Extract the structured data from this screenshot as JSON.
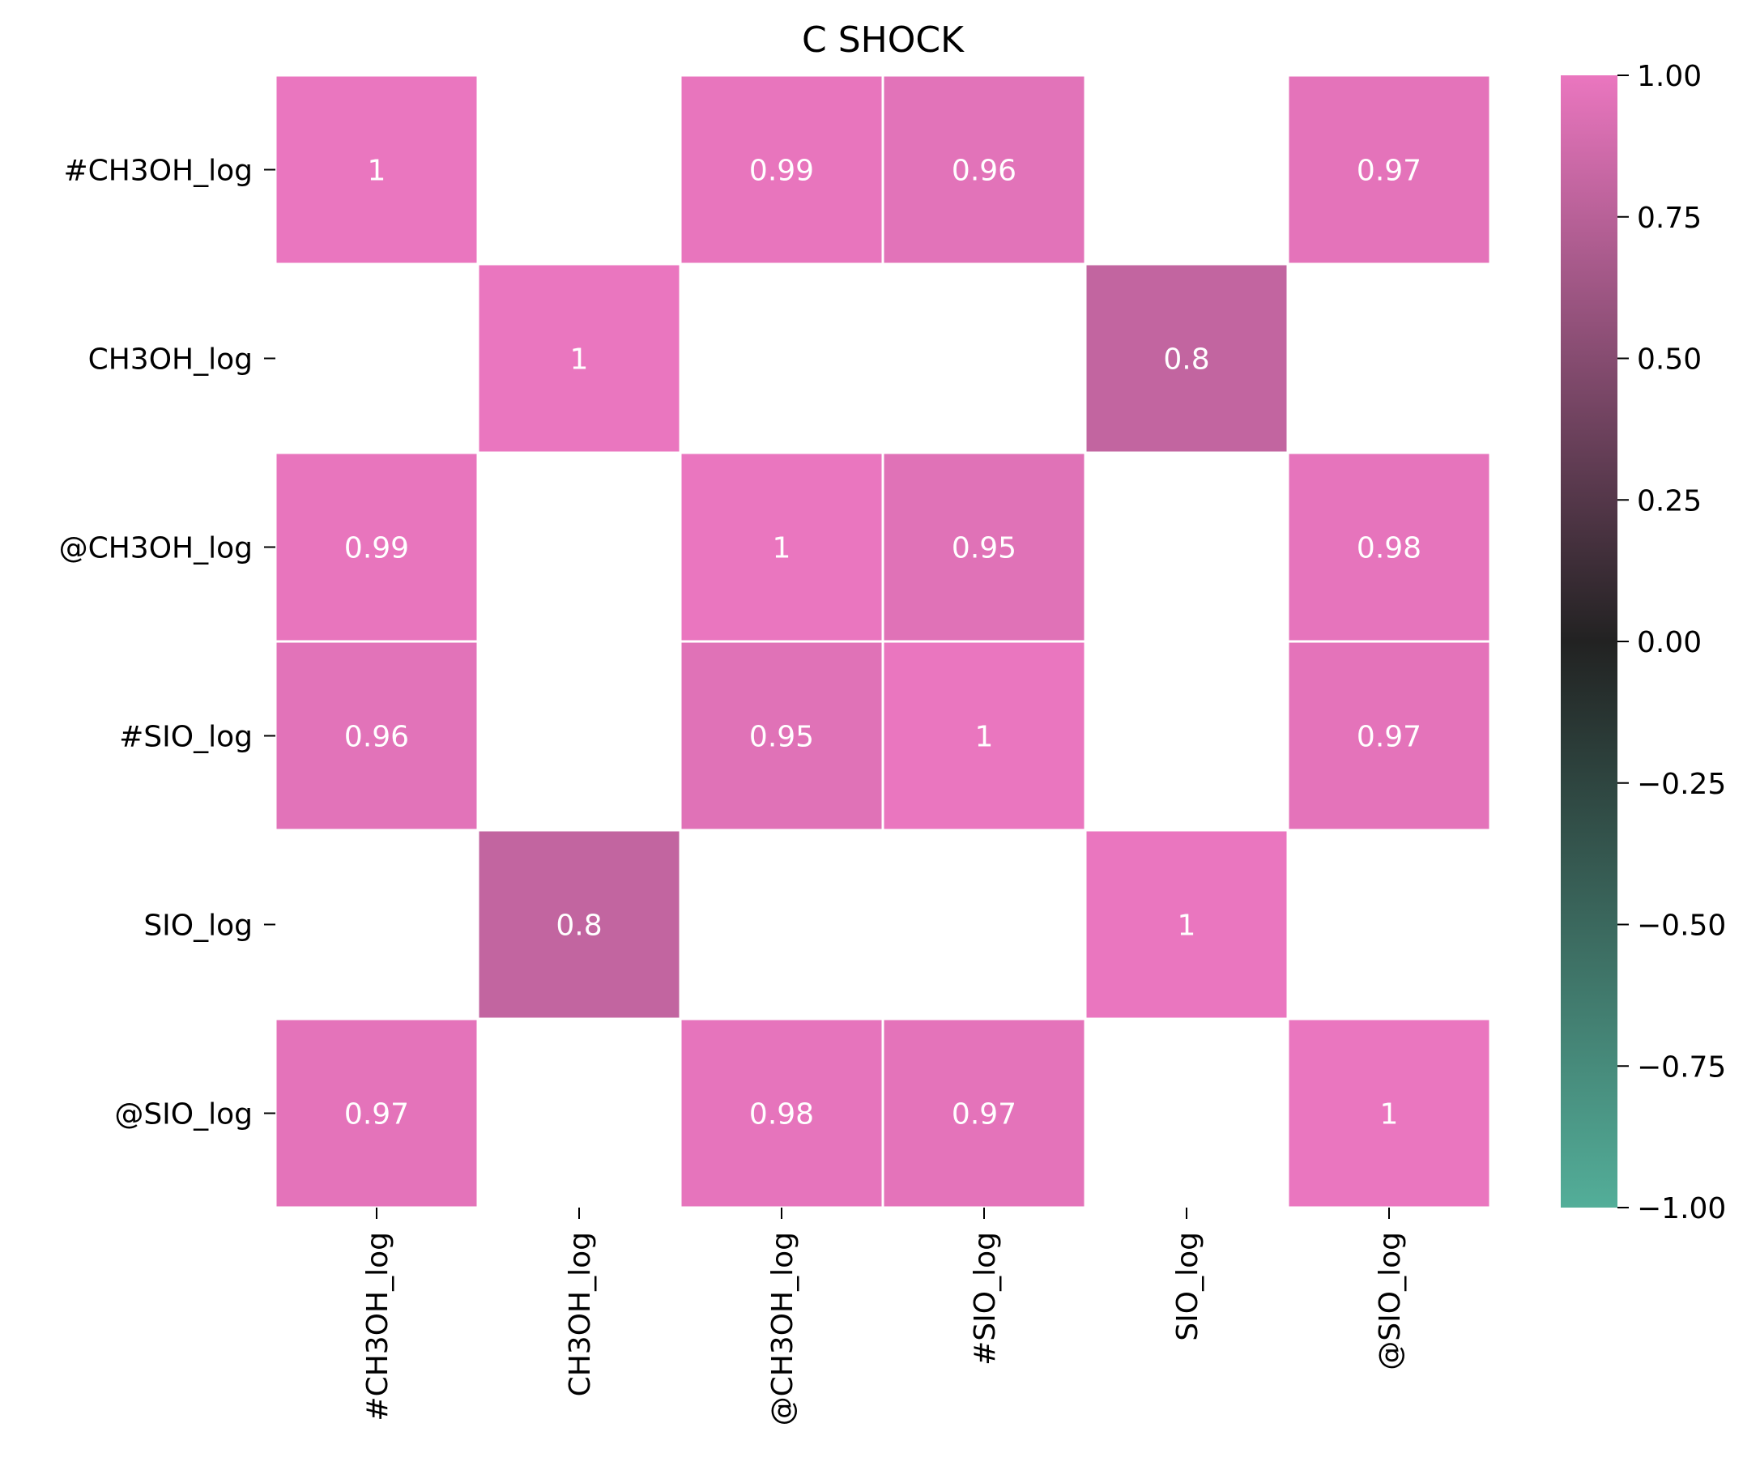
{
  "chart_data": {
    "type": "heatmap",
    "title": "C SHOCK",
    "xlabel": "",
    "ylabel": "",
    "rows": [
      "#CH3OH_log",
      "CH3OH_log",
      "@CH3OH_log",
      "#SIO_log",
      "SIO_log",
      "@SIO_log"
    ],
    "columns": [
      "#CH3OH_log",
      "CH3OH_log",
      "@CH3OH_log",
      "#SIO_log",
      "SIO_log",
      "@SIO_log"
    ],
    "values": [
      [
        1,
        null,
        0.99,
        0.96,
        null,
        0.97
      ],
      [
        null,
        1,
        null,
        null,
        0.8,
        null
      ],
      [
        0.99,
        null,
        1,
        0.95,
        null,
        0.98
      ],
      [
        0.96,
        null,
        0.95,
        1,
        null,
        0.97
      ],
      [
        null,
        0.8,
        null,
        null,
        1,
        null
      ],
      [
        0.97,
        null,
        0.98,
        0.97,
        null,
        1
      ]
    ],
    "cell_labels": [
      [
        "1",
        "",
        "0.99",
        "0.96",
        "",
        "0.97"
      ],
      [
        "",
        "1",
        "",
        "",
        "0.8",
        ""
      ],
      [
        "0.99",
        "",
        "1",
        "0.95",
        "",
        "0.98"
      ],
      [
        "0.96",
        "",
        "0.95",
        "1",
        "",
        "0.97"
      ],
      [
        "",
        "0.8",
        "",
        "",
        "1",
        ""
      ],
      [
        "0.97",
        "",
        "0.98",
        "0.97",
        "",
        "1"
      ]
    ],
    "colorbar": {
      "range": [
        -1,
        1
      ],
      "ticks": [
        1,
        0.75,
        0.5,
        0.25,
        0,
        -0.25,
        -0.5,
        -0.75,
        -1
      ],
      "tick_labels": [
        "1.00",
        "0.75",
        "0.50",
        "0.25",
        "0.00",
        "−0.25",
        "−0.50",
        "−0.75",
        "−1.00"
      ],
      "colors": {
        "low": "#53ae99",
        "mid": "#222222",
        "high": "#ea76bf"
      }
    }
  }
}
